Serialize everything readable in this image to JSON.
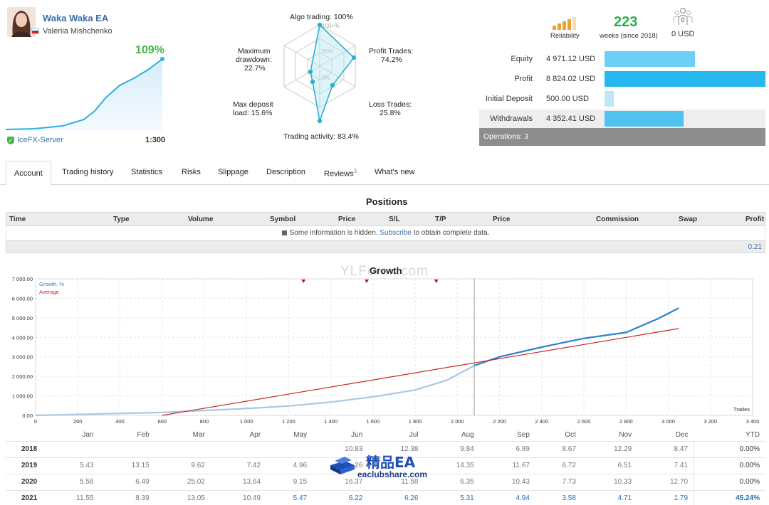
{
  "profile": {
    "ea_name": "Waka Waka EA",
    "author": "Valeriia Mishchenko",
    "growth_pct": "109%",
    "server": "IceFX-Server",
    "leverage": "1:300"
  },
  "radar": {
    "labels": {
      "algo": "Algo trading: 100%",
      "profit": "Profit Trades:",
      "profit_val": "74.2%",
      "loss": "Loss Trades:",
      "loss_val": "25.8%",
      "activity": "Trading activity: 83.4%",
      "deposit": "Max deposit",
      "deposit_val": "load: 15.6%",
      "drawdown": "Maximum",
      "drawdown2": "drawdown:",
      "drawdown_val": "22.7%"
    },
    "rings": [
      "100+%",
      "50%",
      "0%"
    ]
  },
  "summary": {
    "reliability_label": "Reliability",
    "weeks": "223",
    "weeks_label": "weeks (since 2018)",
    "subscribers": "0",
    "subscriber_value": "0 USD"
  },
  "stats": [
    {
      "name": "Equity",
      "value": "4 971.12 USD",
      "fraction": 0.56
    },
    {
      "name": "Profit",
      "value": "8 824.02 USD",
      "fraction": 1.0
    },
    {
      "name": "Initial Deposit",
      "value": "500.00 USD",
      "fraction": 0.057
    },
    {
      "name": "Withdrawals",
      "value": "4 352.41 USD",
      "fraction": 0.49
    }
  ],
  "operations": "Operations: 3",
  "tabs": [
    "Account",
    "Trading history",
    "Statistics",
    "Risks",
    "Slippage",
    "Description",
    "Reviews",
    "What's new"
  ],
  "reviews_count": "3",
  "positions": {
    "title": "Positions",
    "columns": [
      "Time",
      "Type",
      "Volume",
      "Symbol",
      "Price",
      "S/L",
      "T/P",
      "Price",
      "Commission",
      "Swap",
      "Profit"
    ],
    "hidden_msg_pre": "Some information is hidden.",
    "hidden_link": "Subscribe",
    "hidden_msg_post": "to obtain complete data.",
    "total": "0.21"
  },
  "growth": {
    "title": "Growth",
    "watermark": "YLForex.com",
    "legend_growth": "Growth, %",
    "legend_average": "Average",
    "x_axis_label": "Trades"
  },
  "chart_data": {
    "type": "line",
    "title": "Growth",
    "xlabel": "Trades",
    "ylabel": "",
    "xlim": [
      0,
      3400
    ],
    "ylim": [
      0,
      7000
    ],
    "x_ticks": [
      "0",
      "200",
      "400",
      "600",
      "800",
      "1 000",
      "1 200",
      "1 400",
      "1 600",
      "1 800",
      "2 000",
      "2 200",
      "2 400",
      "2 600",
      "2 800",
      "3 000",
      "3 200",
      "3 400"
    ],
    "y_ticks": [
      "0.00",
      "1 000.00",
      "2 000.00",
      "3 000.00",
      "4 000.00",
      "5 000.00",
      "6 000.00",
      "7 000.00"
    ],
    "series": [
      {
        "name": "Growth, %",
        "x": [
          0,
          200,
          400,
          600,
          800,
          1000,
          1200,
          1400,
          1600,
          1800,
          1950,
          2080,
          2200,
          2400,
          2600,
          2800,
          2950,
          3050
        ],
        "y": [
          0,
          50,
          100,
          150,
          250,
          350,
          480,
          680,
          950,
          1300,
          1800,
          2550,
          3000,
          3500,
          3950,
          4250,
          4950,
          5500
        ]
      },
      {
        "name": "Average",
        "x": [
          600,
          3050
        ],
        "y": [
          0,
          4450
        ]
      }
    ],
    "legend": "top-left",
    "grid": true
  },
  "yearly": {
    "months": [
      "Jan",
      "Feb",
      "Mar",
      "Apr",
      "May",
      "Jun",
      "Jul",
      "Aug",
      "Sep",
      "Oct",
      "Nov",
      "Dec"
    ],
    "ytd_label": "YTD",
    "rows": [
      {
        "year": "2018",
        "values": [
          "",
          "",
          "",
          "",
          "",
          "10.83",
          "12.38",
          "9.84",
          "6.89",
          "8.67",
          "12.29",
          "8.47"
        ],
        "ytd": "0.00%"
      },
      {
        "year": "2019",
        "values": [
          "5.43",
          "13.15",
          "9.62",
          "7.42",
          "4.96",
          "26",
          "",
          "14.35",
          "11.67",
          "6.72",
          "6.51",
          "7.41"
        ],
        "ytd": "0.00%"
      },
      {
        "year": "2020",
        "values": [
          "5.56",
          "6.49",
          "25.02",
          "13.64",
          "9.15",
          "16.37",
          "11.58",
          "6.35",
          "10.43",
          "7.73",
          "10.33",
          "12.70"
        ],
        "ytd": "0.00%"
      },
      {
        "year": "2021",
        "values": [
          "11.55",
          "8.39",
          "13.05",
          "10.49",
          "5.47",
          "6.22",
          "6.26",
          "5.31",
          "4.94",
          "3.58",
          "4.71",
          "1.79"
        ],
        "ytd": "45.24%"
      }
    ]
  },
  "logo": {
    "cn_text": "精品EA",
    "url": "eaclubshare.com"
  }
}
